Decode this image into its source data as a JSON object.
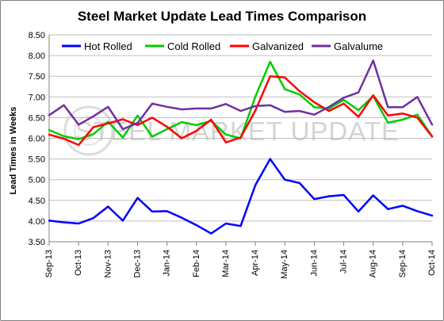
{
  "chart_data": {
    "type": "line",
    "title": "Steel Market Update Lead Times Comparison",
    "ylabel": "Lead Times in Weeks",
    "xlabel": "",
    "ylim": [
      3.5,
      8.5
    ],
    "yticks": [
      "3.50",
      "4.00",
      "4.50",
      "5.00",
      "5.50",
      "6.00",
      "6.50",
      "7.00",
      "7.50",
      "8.00",
      "8.50"
    ],
    "ytick_values": [
      3.5,
      4.0,
      4.5,
      5.0,
      5.5,
      6.0,
      6.5,
      7.0,
      7.5,
      8.0,
      8.5
    ],
    "xticks": [
      "Sep-13",
      "Oct-13",
      "Nov-13",
      "Dec-13",
      "Jan-14",
      "Feb-14",
      "Mar-14",
      "Apr-14",
      "May-14",
      "Jun-14",
      "Jul-14",
      "Aug-14",
      "Sep-14",
      "Oct-14"
    ],
    "grid": "horizontal",
    "legend_position": "top",
    "watermark": "STEEL MARKET UPDATE",
    "x": [
      0,
      0.5,
      1,
      1.5,
      2,
      2.5,
      3,
      3.5,
      4,
      4.5,
      5,
      5.5,
      6,
      6.5,
      7,
      7.5,
      8,
      8.5,
      9,
      9.5,
      10,
      10.5,
      11,
      11.5,
      12,
      12.5,
      13
    ],
    "series": [
      {
        "name": "Hot Rolled",
        "color": "#0000ff",
        "values": [
          4.01,
          3.97,
          3.94,
          4.07,
          4.35,
          4.01,
          4.56,
          4.23,
          4.24,
          4.08,
          3.9,
          3.7,
          3.94,
          3.88,
          4.87,
          5.5,
          5.0,
          4.92,
          4.53,
          4.6,
          4.63,
          4.23,
          4.62,
          4.29,
          4.37,
          4.24,
          4.13
        ]
      },
      {
        "name": "Cold Rolled",
        "color": "#00cc00",
        "values": [
          6.2,
          6.05,
          5.98,
          6.1,
          6.4,
          6.02,
          6.55,
          6.04,
          6.22,
          6.39,
          6.32,
          6.42,
          6.09,
          6.0,
          7.01,
          7.85,
          7.19,
          7.06,
          6.75,
          6.72,
          6.93,
          6.68,
          7.02,
          6.38,
          6.45,
          6.57,
          6.05
        ]
      },
      {
        "name": "Galvanized",
        "color": "#ff0000",
        "values": [
          6.09,
          5.99,
          5.84,
          6.27,
          6.36,
          6.46,
          6.32,
          6.5,
          6.28,
          6.0,
          6.18,
          6.45,
          5.9,
          6.02,
          6.67,
          7.5,
          7.47,
          7.14,
          6.87,
          6.66,
          6.84,
          6.52,
          7.04,
          6.55,
          6.6,
          6.5,
          6.04
        ]
      },
      {
        "name": "Galvalume",
        "color": "#7030a0",
        "values": [
          6.56,
          6.8,
          6.33,
          6.53,
          6.76,
          6.22,
          6.37,
          6.84,
          6.76,
          6.7,
          6.72,
          6.72,
          6.83,
          6.66,
          6.78,
          6.8,
          6.64,
          6.66,
          6.57,
          6.76,
          6.98,
          7.11,
          7.88,
          6.75,
          6.75,
          7.0,
          6.33
        ]
      }
    ]
  }
}
